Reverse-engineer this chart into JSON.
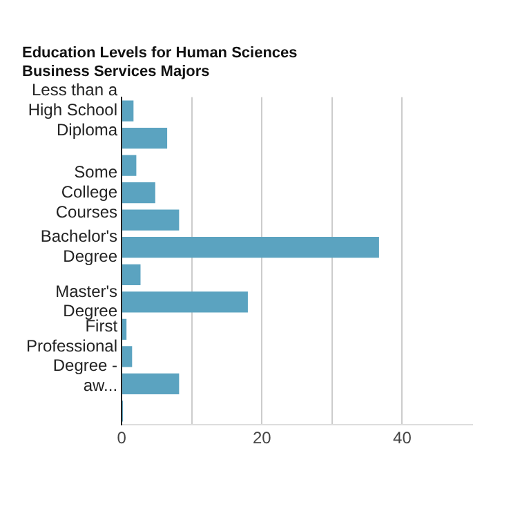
{
  "chart_data": {
    "type": "bar",
    "orientation": "horizontal",
    "title": "Education Levels for Human Sciences Business Services Majors",
    "categories": [
      "Less than a High School Diploma",
      null,
      null,
      "Some College Courses",
      null,
      "Bachelor's Degree",
      null,
      "Master's Degree",
      null,
      "First Professional Degree - aw...",
      null,
      null
    ],
    "values": [
      1.7,
      6.5,
      2.1,
      4.8,
      8.2,
      36.7,
      2.7,
      18.0,
      0.7,
      1.5,
      8.2,
      0.2
    ],
    "color": "#5ba3c0",
    "xlim": [
      0,
      50
    ],
    "xticks": [
      0,
      {
        "value": 10,
        "label": null
      },
      20,
      {
        "value": 30,
        "label": null
      },
      40
    ],
    "grid": "x",
    "legend": false
  }
}
